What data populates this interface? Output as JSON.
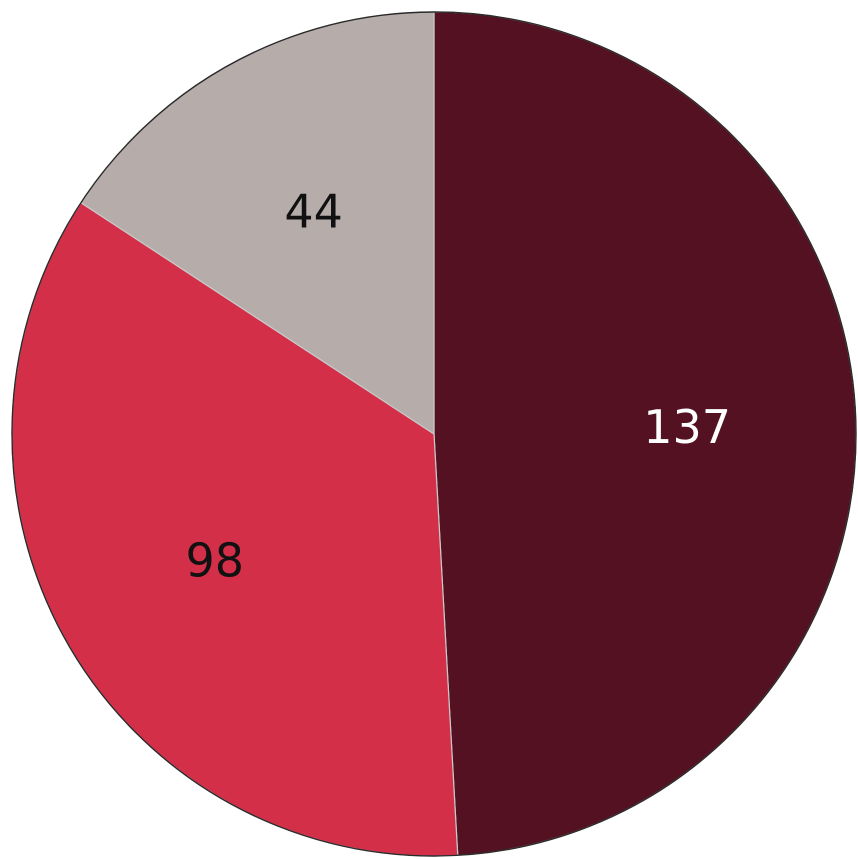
{
  "chart_data": {
    "type": "pie",
    "title": "",
    "start_angle_deg": 90,
    "direction": "clockwise",
    "legend": "none",
    "slices": [
      {
        "value": 137,
        "label": "137",
        "color": "#541121",
        "label_color": "#ffffff"
      },
      {
        "value": 98,
        "label": "98",
        "color": "#d32f49",
        "label_color": "#111111"
      },
      {
        "value": 44,
        "label": "44",
        "color": "#b6adab",
        "label_color": "#111111"
      }
    ]
  }
}
